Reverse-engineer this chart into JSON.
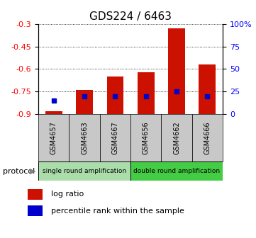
{
  "title": "GDS224 / 6463",
  "samples": [
    "GSM4657",
    "GSM4663",
    "GSM4667",
    "GSM4656",
    "GSM4662",
    "GSM4666"
  ],
  "log_ratios": [
    -0.88,
    -0.74,
    -0.65,
    -0.62,
    -0.33,
    -0.57
  ],
  "percentile_ranks": [
    15,
    20,
    20,
    20,
    25,
    20
  ],
  "ylim_left": [
    -0.9,
    -0.3
  ],
  "ylim_right": [
    0,
    100
  ],
  "yticks_left": [
    -0.9,
    -0.75,
    -0.6,
    -0.45,
    -0.3
  ],
  "yticks_right": [
    0,
    25,
    50,
    75,
    100
  ],
  "ytick_labels_right": [
    "0",
    "25",
    "50",
    "75",
    "100%"
  ],
  "bar_color": "#cc1100",
  "percentile_color": "#0000cc",
  "n_single": 3,
  "n_double": 3,
  "single_label": "single round amplification",
  "double_label": "double round amplification",
  "protocol_label": "protocol",
  "legend_log": "log ratio",
  "legend_pct": "percentile rank within the sample",
  "bar_bottom": -0.9,
  "bg_color": "#ffffff",
  "plot_bg": "#ffffff",
  "gray_label_bg": "#c8c8c8",
  "single_bg": "#aaddaa",
  "double_bg": "#44cc44",
  "title_fontsize": 11,
  "tick_fontsize": 8,
  "sample_fontsize": 7,
  "protocol_fontsize": 6.5,
  "legend_fontsize": 8
}
